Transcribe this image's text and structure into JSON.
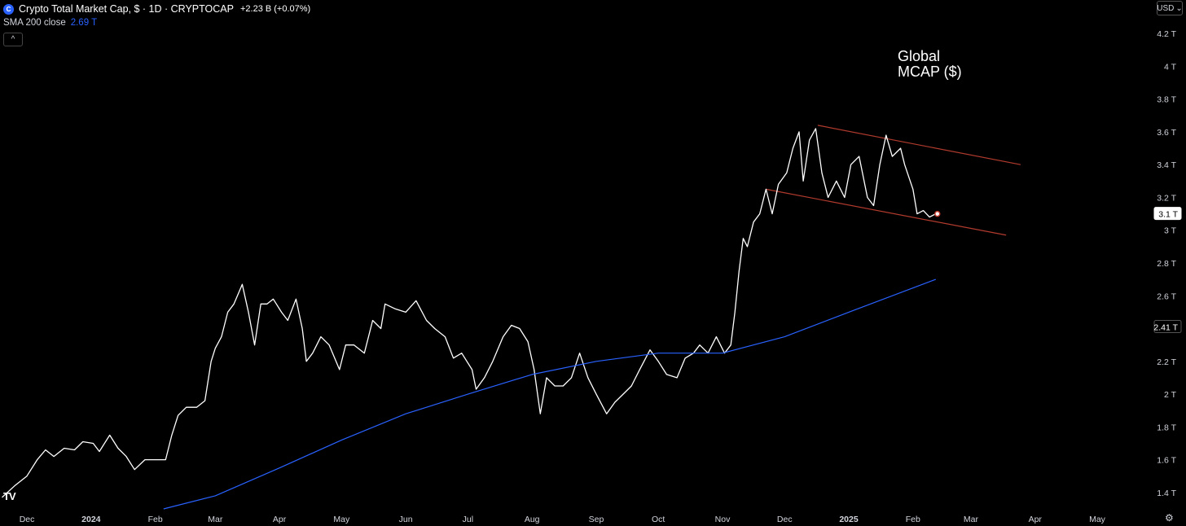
{
  "header": {
    "logo_glyph": "C",
    "title": "Crypto Total Market Cap, $ · 1D · CRYPTOCAP",
    "change": "+2.23 B (+0.07%)"
  },
  "indicator": {
    "label": "SMA 200 close",
    "value": "2.69 T"
  },
  "collapse_glyph": "^",
  "currency": {
    "label": "USD",
    "caret": "⌄"
  },
  "annotation": {
    "line1": "Global",
    "line2": "MCAP ($)"
  },
  "watermark": "TV",
  "settings_glyph": "⚙",
  "colors": {
    "background": "#000000",
    "price_line": "#ffffff",
    "sma_line": "#2962ff",
    "trend_line": "#b23b2e",
    "axis_text": "#d1d4dc"
  },
  "chart_data": {
    "type": "line",
    "title": "",
    "xlabel": "",
    "ylabel": "",
    "grid": false,
    "ylim": [
      1.3,
      4.3
    ],
    "y_ticks": [
      1.4,
      1.6,
      1.8,
      2.0,
      2.2,
      2.4,
      2.6,
      2.8,
      3.0,
      3.2,
      3.4,
      3.6,
      3.8,
      4.0,
      4.2
    ],
    "y_tick_labels": [
      "1.4 T",
      "1.6 T",
      "1.8 T",
      "2 T",
      "2.2 T",
      "2.4 T",
      "2.6 T",
      "2.8 T",
      "3 T",
      "3.2 T",
      "3.4 T",
      "3.6 T",
      "3.8 T",
      "4 T",
      "4.2 T"
    ],
    "x_range": [
      "2023-11-18",
      "2025-05-25"
    ],
    "x_ticks": [
      {
        "date": "2023-12-01",
        "label": "Dec",
        "bold": false
      },
      {
        "date": "2024-01-01",
        "label": "2024",
        "bold": true
      },
      {
        "date": "2024-02-01",
        "label": "Feb",
        "bold": false
      },
      {
        "date": "2024-03-01",
        "label": "Mar",
        "bold": false
      },
      {
        "date": "2024-04-01",
        "label": "Apr",
        "bold": false
      },
      {
        "date": "2024-05-01",
        "label": "May",
        "bold": false
      },
      {
        "date": "2024-06-01",
        "label": "Jun",
        "bold": false
      },
      {
        "date": "2024-07-01",
        "label": "Jul",
        "bold": false
      },
      {
        "date": "2024-08-01",
        "label": "Aug",
        "bold": false
      },
      {
        "date": "2024-09-01",
        "label": "Sep",
        "bold": false
      },
      {
        "date": "2024-10-01",
        "label": "Oct",
        "bold": false
      },
      {
        "date": "2024-11-01",
        "label": "Nov",
        "bold": false
      },
      {
        "date": "2024-12-01",
        "label": "Dec",
        "bold": false
      },
      {
        "date": "2025-01-01",
        "label": "2025",
        "bold": true
      },
      {
        "date": "2025-02-01",
        "label": "Feb",
        "bold": false
      },
      {
        "date": "2025-03-01",
        "label": "Mar",
        "bold": false
      },
      {
        "date": "2025-04-01",
        "label": "Apr",
        "bold": false
      },
      {
        "date": "2025-05-01",
        "label": "May",
        "bold": false
      }
    ],
    "series": [
      {
        "name": "Crypto Total Market Cap",
        "color": "#ffffff",
        "points": [
          [
            "2023-11-19",
            1.37
          ],
          [
            "2023-11-25",
            1.44
          ],
          [
            "2023-12-01",
            1.5
          ],
          [
            "2023-12-06",
            1.6
          ],
          [
            "2023-12-10",
            1.66
          ],
          [
            "2023-12-14",
            1.62
          ],
          [
            "2023-12-19",
            1.67
          ],
          [
            "2023-12-24",
            1.66
          ],
          [
            "2023-12-28",
            1.71
          ],
          [
            "2024-01-02",
            1.7
          ],
          [
            "2024-01-05",
            1.65
          ],
          [
            "2024-01-10",
            1.75
          ],
          [
            "2024-01-14",
            1.67
          ],
          [
            "2024-01-18",
            1.62
          ],
          [
            "2024-01-22",
            1.54
          ],
          [
            "2024-01-27",
            1.6
          ],
          [
            "2024-02-01",
            1.6
          ],
          [
            "2024-02-06",
            1.6
          ],
          [
            "2024-02-09",
            1.75
          ],
          [
            "2024-02-12",
            1.87
          ],
          [
            "2024-02-16",
            1.92
          ],
          [
            "2024-02-21",
            1.92
          ],
          [
            "2024-02-25",
            1.96
          ],
          [
            "2024-02-28",
            2.2
          ],
          [
            "2024-03-01",
            2.28
          ],
          [
            "2024-03-04",
            2.35
          ],
          [
            "2024-03-07",
            2.5
          ],
          [
            "2024-03-10",
            2.55
          ],
          [
            "2024-03-14",
            2.67
          ],
          [
            "2024-03-17",
            2.5
          ],
          [
            "2024-03-20",
            2.3
          ],
          [
            "2024-03-23",
            2.55
          ],
          [
            "2024-03-26",
            2.55
          ],
          [
            "2024-03-29",
            2.58
          ],
          [
            "2024-04-02",
            2.5
          ],
          [
            "2024-04-05",
            2.45
          ],
          [
            "2024-04-09",
            2.58
          ],
          [
            "2024-04-12",
            2.4
          ],
          [
            "2024-04-14",
            2.2
          ],
          [
            "2024-04-17",
            2.25
          ],
          [
            "2024-04-21",
            2.35
          ],
          [
            "2024-04-25",
            2.3
          ],
          [
            "2024-04-30",
            2.15
          ],
          [
            "2024-05-03",
            2.3
          ],
          [
            "2024-05-07",
            2.3
          ],
          [
            "2024-05-12",
            2.25
          ],
          [
            "2024-05-16",
            2.45
          ],
          [
            "2024-05-20",
            2.4
          ],
          [
            "2024-05-22",
            2.55
          ],
          [
            "2024-05-27",
            2.52
          ],
          [
            "2024-06-01",
            2.5
          ],
          [
            "2024-06-06",
            2.57
          ],
          [
            "2024-06-11",
            2.45
          ],
          [
            "2024-06-15",
            2.4
          ],
          [
            "2024-06-20",
            2.35
          ],
          [
            "2024-06-24",
            2.22
          ],
          [
            "2024-06-28",
            2.25
          ],
          [
            "2024-07-03",
            2.15
          ],
          [
            "2024-07-05",
            2.03
          ],
          [
            "2024-07-09",
            2.1
          ],
          [
            "2024-07-13",
            2.2
          ],
          [
            "2024-07-18",
            2.35
          ],
          [
            "2024-07-22",
            2.42
          ],
          [
            "2024-07-26",
            2.4
          ],
          [
            "2024-07-30",
            2.32
          ],
          [
            "2024-08-02",
            2.15
          ],
          [
            "2024-08-05",
            1.88
          ],
          [
            "2024-08-08",
            2.1
          ],
          [
            "2024-08-12",
            2.05
          ],
          [
            "2024-08-16",
            2.05
          ],
          [
            "2024-08-20",
            2.1
          ],
          [
            "2024-08-24",
            2.25
          ],
          [
            "2024-08-28",
            2.1
          ],
          [
            "2024-09-01",
            2.0
          ],
          [
            "2024-09-06",
            1.88
          ],
          [
            "2024-09-10",
            1.95
          ],
          [
            "2024-09-14",
            2.0
          ],
          [
            "2024-09-18",
            2.05
          ],
          [
            "2024-09-22",
            2.15
          ],
          [
            "2024-09-27",
            2.27
          ],
          [
            "2024-10-01",
            2.2
          ],
          [
            "2024-10-05",
            2.12
          ],
          [
            "2024-10-10",
            2.1
          ],
          [
            "2024-10-14",
            2.22
          ],
          [
            "2024-10-18",
            2.25
          ],
          [
            "2024-10-21",
            2.3
          ],
          [
            "2024-10-25",
            2.25
          ],
          [
            "2024-10-29",
            2.35
          ],
          [
            "2024-11-02",
            2.25
          ],
          [
            "2024-11-05",
            2.3
          ],
          [
            "2024-11-07",
            2.5
          ],
          [
            "2024-11-09",
            2.75
          ],
          [
            "2024-11-11",
            2.95
          ],
          [
            "2024-11-13",
            2.9
          ],
          [
            "2024-11-16",
            3.05
          ],
          [
            "2024-11-19",
            3.1
          ],
          [
            "2024-11-22",
            3.25
          ],
          [
            "2024-11-25",
            3.1
          ],
          [
            "2024-11-28",
            3.28
          ],
          [
            "2024-12-02",
            3.35
          ],
          [
            "2024-12-05",
            3.5
          ],
          [
            "2024-12-08",
            3.6
          ],
          [
            "2024-12-10",
            3.3
          ],
          [
            "2024-12-13",
            3.55
          ],
          [
            "2024-12-16",
            3.62
          ],
          [
            "2024-12-19",
            3.35
          ],
          [
            "2024-12-22",
            3.2
          ],
          [
            "2024-12-26",
            3.3
          ],
          [
            "2024-12-30",
            3.2
          ],
          [
            "2025-01-02",
            3.4
          ],
          [
            "2025-01-06",
            3.45
          ],
          [
            "2025-01-10",
            3.2
          ],
          [
            "2025-01-13",
            3.15
          ],
          [
            "2025-01-16",
            3.4
          ],
          [
            "2025-01-19",
            3.58
          ],
          [
            "2025-01-22",
            3.45
          ],
          [
            "2025-01-26",
            3.5
          ],
          [
            "2025-01-28",
            3.4
          ],
          [
            "2025-02-01",
            3.25
          ],
          [
            "2025-02-03",
            3.1
          ],
          [
            "2025-02-06",
            3.12
          ],
          [
            "2025-02-09",
            3.08
          ],
          [
            "2025-02-12",
            3.1
          ]
        ]
      },
      {
        "name": "SMA 200 close",
        "color": "#2962ff",
        "points": [
          [
            "2024-02-05",
            1.3
          ],
          [
            "2024-03-01",
            1.38
          ],
          [
            "2024-04-01",
            1.55
          ],
          [
            "2024-05-01",
            1.72
          ],
          [
            "2024-06-01",
            1.88
          ],
          [
            "2024-07-01",
            2.0
          ],
          [
            "2024-08-01",
            2.12
          ],
          [
            "2024-09-01",
            2.2
          ],
          [
            "2024-10-01",
            2.25
          ],
          [
            "2024-11-01",
            2.25
          ],
          [
            "2024-12-01",
            2.35
          ],
          [
            "2025-01-01",
            2.5
          ],
          [
            "2025-02-12",
            2.7
          ]
        ]
      }
    ],
    "trend_lines": [
      {
        "points": [
          [
            "2024-12-17",
            3.64
          ],
          [
            "2025-03-25",
            3.4
          ]
        ]
      },
      {
        "points": [
          [
            "2024-11-22",
            3.25
          ],
          [
            "2025-03-18",
            2.97
          ]
        ]
      }
    ],
    "price_labels": [
      {
        "value": 3.1,
        "label": "3.1 T",
        "style": "white"
      },
      {
        "value": 2.41,
        "label": "2.41 T",
        "style": "dark"
      }
    ]
  }
}
